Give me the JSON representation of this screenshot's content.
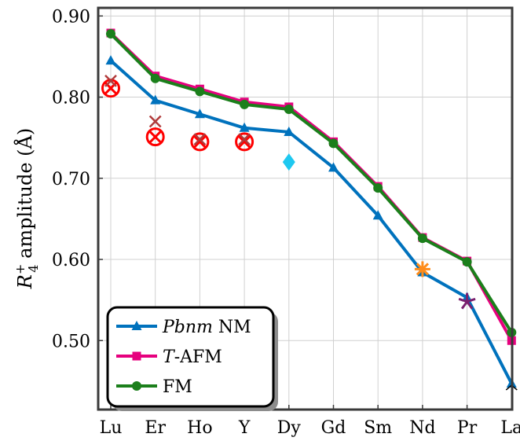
{
  "chart_data": {
    "type": "line",
    "categories": [
      "Lu",
      "Er",
      "Ho",
      "Y",
      "Dy",
      "Gd",
      "Sm",
      "Nd",
      "Pr",
      "La"
    ],
    "ylabel_main": "R",
    "ylabel_sup": "+",
    "ylabel_sub": "4",
    "ylabel_rest": " amplitude (Å)",
    "ylim": [
      0.415,
      0.91
    ],
    "yticks": [
      0.5,
      0.6,
      0.7,
      0.8,
      0.9
    ],
    "ytick_labels": [
      "0.50",
      "0.60",
      "0.70",
      "0.80",
      "0.90"
    ],
    "grid": true,
    "legend_position": "bottom-left",
    "series": [
      {
        "name": "NM",
        "name_italic": "Pbnm",
        "color": "#0072BD",
        "marker": "triangle",
        "values": [
          0.845,
          0.796,
          0.779,
          0.762,
          0.757,
          0.713,
          0.654,
          0.584,
          0.553,
          0.447
        ]
      },
      {
        "name": "-AFM",
        "name_italic": "T",
        "color": "#E6007E",
        "marker": "square",
        "values": [
          0.879,
          0.826,
          0.81,
          0.794,
          0.788,
          0.745,
          0.69,
          0.627,
          0.598,
          0.5
        ]
      },
      {
        "name": "FM",
        "name_italic": "",
        "color": "#1B7F1B",
        "marker": "circle",
        "values": [
          0.878,
          0.823,
          0.807,
          0.791,
          0.785,
          0.743,
          0.688,
          0.626,
          0.597,
          0.51
        ]
      }
    ],
    "extra_points": [
      {
        "x": "Lu",
        "y": 0.811,
        "marker": "circle-x",
        "color": "#FF0000"
      },
      {
        "x": "Er",
        "y": 0.751,
        "marker": "circle-x",
        "color": "#FF0000"
      },
      {
        "x": "Ho",
        "y": 0.745,
        "marker": "circle-x",
        "color": "#FF0000"
      },
      {
        "x": "Y",
        "y": 0.745,
        "marker": "circle-x",
        "color": "#FF0000"
      },
      {
        "x": "Lu",
        "y": 0.82,
        "marker": "x",
        "color": "#B03A3A"
      },
      {
        "x": "Er",
        "y": 0.77,
        "marker": "x",
        "color": "#B03A3A"
      },
      {
        "x": "Ho",
        "y": 0.748,
        "marker": "x",
        "color": "#B03A3A"
      },
      {
        "x": "Y",
        "y": 0.748,
        "marker": "x",
        "color": "#B03A3A"
      },
      {
        "x": "Dy",
        "y": 0.72,
        "marker": "diamond",
        "color": "#1EC8F0"
      },
      {
        "x": "Nd",
        "y": 0.588,
        "marker": "asterisk",
        "color": "#FF8C1A"
      },
      {
        "x": "Pr",
        "y": 0.548,
        "marker": "star",
        "color": "#7A1F6E"
      },
      {
        "x": "La",
        "y": 0.445,
        "marker": "caret",
        "color": "#000000"
      }
    ]
  }
}
